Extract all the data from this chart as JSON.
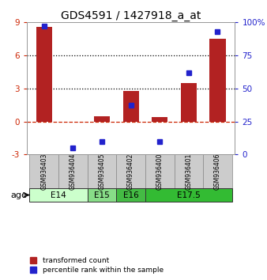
{
  "title": "GDS4591 / 1427918_a_at",
  "samples": [
    "GSM936403",
    "GSM936404",
    "GSM936405",
    "GSM936402",
    "GSM936400",
    "GSM936401",
    "GSM936406"
  ],
  "transformed_count": [
    8.6,
    -0.05,
    0.5,
    2.75,
    0.4,
    3.5,
    7.5
  ],
  "percentile_rank": [
    97,
    5,
    10,
    37,
    10,
    62,
    93
  ],
  "ylim_left": [
    -3,
    9
  ],
  "ylim_right": [
    0,
    100
  ],
  "yticks_left": [
    -3,
    0,
    3,
    6,
    9
  ],
  "yticks_right": [
    0,
    25,
    50,
    75,
    100
  ],
  "ytick_labels_right": [
    "0",
    "25",
    "50",
    "75",
    "100%"
  ],
  "hlines": [
    3.0,
    6.0
  ],
  "bar_color": "#b22222",
  "dot_color": "#2222cc",
  "bar_width": 0.55,
  "dot_size": 5,
  "age_groups": [
    {
      "label": "E14",
      "spans": [
        0,
        1
      ],
      "color": "#ccffcc"
    },
    {
      "label": "E15",
      "spans": [
        2
      ],
      "color": "#88dd88"
    },
    {
      "label": "E16",
      "spans": [
        3
      ],
      "color": "#44bb44"
    },
    {
      "label": "E17.5",
      "spans": [
        4,
        5,
        6
      ],
      "color": "#33bb33"
    }
  ],
  "left_tick_color": "#cc2200",
  "right_tick_color": "#2222cc",
  "tick_label_fontsize": 7.5,
  "title_fontsize": 10,
  "age_label": "age",
  "legend_labels": [
    "transformed count",
    "percentile rank within the sample"
  ],
  "legend_colors": [
    "#b22222",
    "#2222cc"
  ]
}
